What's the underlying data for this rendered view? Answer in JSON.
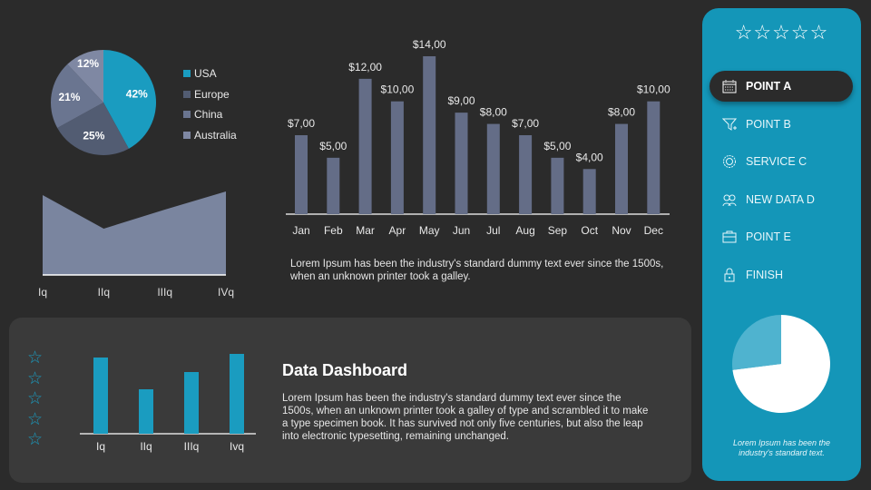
{
  "colors": {
    "accent": "#1496b8",
    "background": "#2b2b2b",
    "bar": "#646d87",
    "area": "#7a859f",
    "panel": "#3a3a3a"
  },
  "chart_data": [
    {
      "type": "pie",
      "slices": [
        {
          "label": "USA",
          "value": 42,
          "display": "42%",
          "color": "#1a9cc0"
        },
        {
          "label": "Europe",
          "value": 25,
          "display": "25%",
          "color": "#525c72"
        },
        {
          "label": "China",
          "value": 21,
          "display": "21%",
          "color": "#6a7590"
        },
        {
          "label": "Australia",
          "value": 12,
          "display": "12%",
          "color": "#7f88a3"
        }
      ],
      "legend": "right"
    },
    {
      "type": "area",
      "categories": [
        "Iq",
        "IIq",
        "IIIq",
        "IVq"
      ],
      "values": [
        88,
        51,
        72,
        92
      ],
      "ylim": [
        0,
        100
      ]
    },
    {
      "type": "bar",
      "categories": [
        "Jan",
        "Feb",
        "Mar",
        "Apr",
        "May",
        "Jun",
        "Jul",
        "Aug",
        "Sep",
        "Oct",
        "Nov",
        "Dec"
      ],
      "values": [
        7,
        5,
        12,
        10,
        14,
        9,
        8,
        7,
        5,
        4,
        8,
        10
      ],
      "labels": [
        "$7,00",
        "$5,00",
        "$12,00",
        "$10,00",
        "$14,00",
        "$9,00",
        "$8,00",
        "$7,00",
        "$5,00",
        "$4,00",
        "$8,00",
        "$10,00"
      ],
      "ylim": [
        0,
        14
      ]
    },
    {
      "type": "bar",
      "categories": [
        "Iq",
        "IIq",
        "IIIq",
        "Ivq"
      ],
      "values": [
        84,
        49,
        68,
        88
      ],
      "ylim": [
        0,
        100
      ]
    },
    {
      "type": "pie",
      "slices": [
        {
          "value": 73,
          "color": "#ffffff"
        },
        {
          "value": 27,
          "color": "#4fb3cf"
        }
      ]
    }
  ],
  "bar_caption": "Lorem Ipsum has been the industry's standard dummy text ever since the 1500s, when an unknown printer took a galley.",
  "panel": {
    "title": "Data Dashboard",
    "text": "Lorem Ipsum has been the industry's standard dummy text ever since the 1500s, when an unknown printer took a galley of type and scrambled it to make a type specimen book. It has survived not only five centuries, but also the leap into electronic typesetting, remaining unchanged.",
    "stars": "☆☆☆☆☆"
  },
  "sidebar": {
    "rating": "☆☆☆☆☆",
    "items": [
      {
        "label": "POINT A",
        "icon": "calendar-icon",
        "active": true
      },
      {
        "label": "POINT B",
        "icon": "funnel-icon"
      },
      {
        "label": "SERVICE C",
        "icon": "gear-badge-icon"
      },
      {
        "label": "NEW DATA  D",
        "icon": "users-icon"
      },
      {
        "label": "POINT E",
        "icon": "briefcase-icon"
      },
      {
        "label": "FINISH",
        "icon": "lock-icon"
      }
    ],
    "caption": "Lorem Ipsum has been the industry's standard text."
  }
}
